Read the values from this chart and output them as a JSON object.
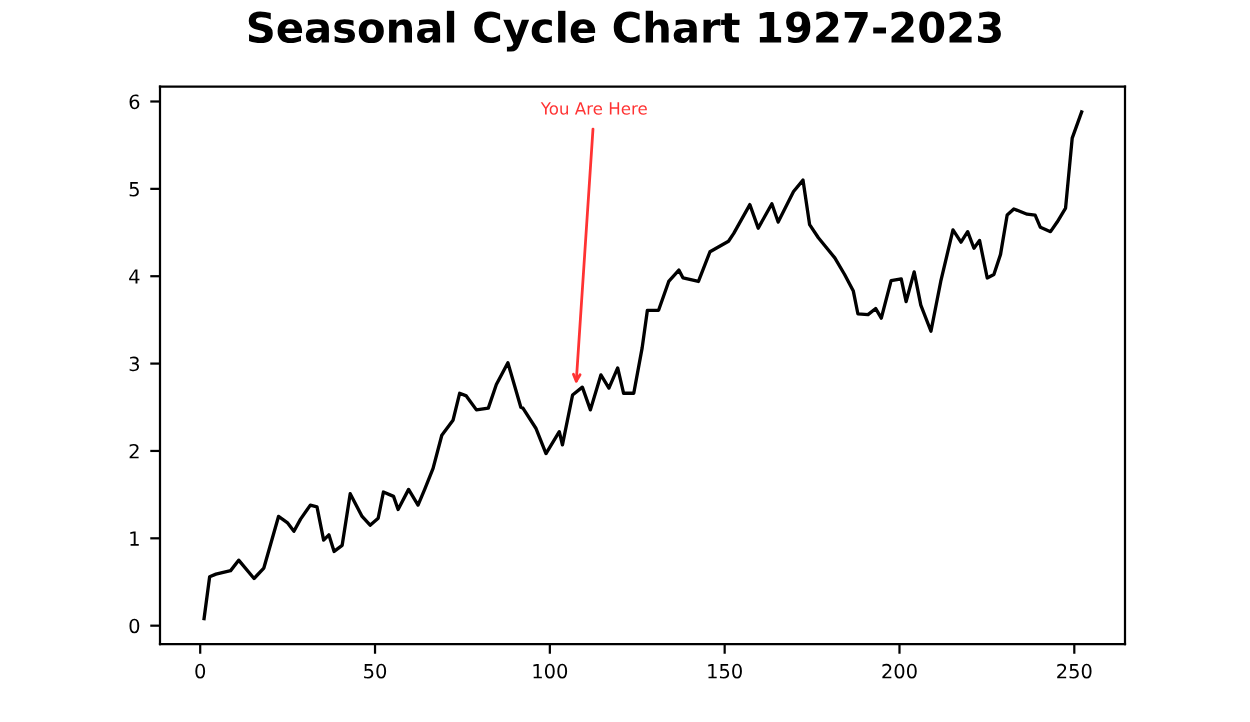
{
  "chart_data": {
    "type": "line",
    "title": "Seasonal Cycle Chart 1927-2023",
    "series": [
      {
        "color": "#000000",
        "x": [
          1.1,
          2.7,
          4.5,
          8.7,
          11,
          15.4,
          18.2,
          22.4,
          24.9,
          26.8,
          28.7,
          31.5,
          33.4,
          35.3,
          36.8,
          38.3,
          40.6,
          42.9,
          46.3,
          48.6,
          50.9,
          52.4,
          55.3,
          56.6,
          59.6,
          62.3,
          64.2,
          66.6,
          69.1,
          72.3,
          74.2,
          76.1,
          79,
          82.4,
          84.7,
          88,
          91.7,
          92.3,
          96,
          98.9,
          102.7,
          103.6,
          106.5,
          109.3,
          111.6,
          114.6,
          116.9,
          119.4,
          121.1,
          124,
          126.4,
          127.9,
          131.1,
          134,
          136.9,
          138.1,
          142.5,
          145.8,
          151.1,
          152.6,
          157.2,
          159.6,
          163.5,
          165.3,
          169.7,
          172.4,
          174.3,
          176.8,
          181.5,
          184.3,
          186.8,
          188.1,
          191,
          193.2,
          194.8,
          197.6,
          200.5,
          201.9,
          204.2,
          206.1,
          209,
          211.8,
          215.3,
          217.6,
          219.5,
          221.3,
          222.9,
          225.1,
          227,
          228.9,
          230.8,
          232.7,
          236.5,
          238.8,
          240.3,
          243.2,
          245.1,
          247.5,
          249.4,
          252.1
        ],
        "values": [
          0.08,
          0.56,
          0.59,
          0.63,
          0.75,
          0.54,
          0.66,
          1.25,
          1.18,
          1.08,
          1.22,
          1.38,
          1.36,
          0.98,
          1.04,
          0.85,
          0.92,
          1.51,
          1.25,
          1.15,
          1.23,
          1.53,
          1.48,
          1.33,
          1.56,
          1.38,
          1.56,
          1.8,
          2.18,
          2.35,
          2.66,
          2.63,
          2.47,
          2.49,
          2.76,
          3.01,
          2.5,
          2.49,
          2.26,
          1.97,
          2.22,
          2.07,
          2.64,
          2.73,
          2.47,
          2.87,
          2.72,
          2.95,
          2.66,
          2.66,
          3.18,
          3.61,
          3.61,
          3.94,
          4.07,
          3.98,
          3.94,
          4.28,
          4.4,
          4.49,
          4.82,
          4.55,
          4.83,
          4.62,
          4.97,
          5.1,
          4.59,
          4.44,
          4.21,
          4.02,
          3.83,
          3.57,
          3.56,
          3.63,
          3.52,
          3.95,
          3.97,
          3.71,
          4.05,
          3.67,
          3.37,
          3.94,
          4.53,
          4.39,
          4.51,
          4.32,
          4.41,
          3.98,
          4.02,
          4.25,
          4.7,
          4.77,
          4.71,
          4.7,
          4.56,
          4.51,
          4.62,
          4.78,
          5.58,
          5.88
        ]
      }
    ],
    "annotations": [
      {
        "text": "You Are Here",
        "x": 107.4,
        "y": 2.7
      }
    ],
    "xlim": [
      -11.5,
      264.5
    ],
    "ylim": [
      -0.21,
      6.17
    ],
    "xticks": [
      0,
      50,
      100,
      150,
      200,
      250
    ],
    "yticks": [
      0,
      1,
      2,
      3,
      4,
      5,
      6
    ],
    "grid": false,
    "marker": "none",
    "line_style": "solid"
  }
}
